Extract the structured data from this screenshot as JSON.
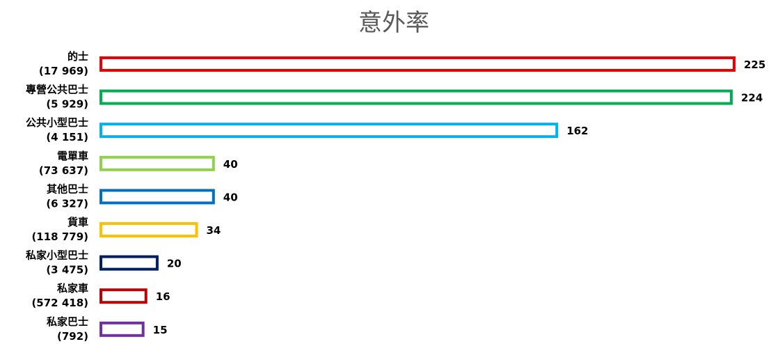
{
  "chart_data": {
    "type": "bar",
    "orientation": "horizontal",
    "title": "意外率",
    "categories": [
      {
        "name": "的士",
        "count": "(17 969)",
        "color": "#ee0000"
      },
      {
        "name": "專營公共巴士",
        "count": "(5 929)",
        "color": "#00b050"
      },
      {
        "name": "公共小型巴士",
        "count": "(4 151)",
        "color": "#00b0f0"
      },
      {
        "name": "電單車",
        "count": "(73 637)",
        "color": "#92d050"
      },
      {
        "name": "其他巴士",
        "count": "(6 327)",
        "color": "#0070c0"
      },
      {
        "name": "貨車",
        "count": "(118 779)",
        "color": "#ffc000"
      },
      {
        "name": "私家小型巴士",
        "count": "(3 475)",
        "color": "#002060"
      },
      {
        "name": "私家車",
        "count": "(572 418)",
        "color": "#c00000"
      },
      {
        "name": "私家巴士",
        "count": "(792)",
        "color": "#7030a0"
      }
    ],
    "values": [
      225,
      224,
      162,
      40,
      40,
      34,
      20,
      16,
      15
    ],
    "xlim": [
      0,
      225
    ],
    "grid": false,
    "legend": "none"
  }
}
